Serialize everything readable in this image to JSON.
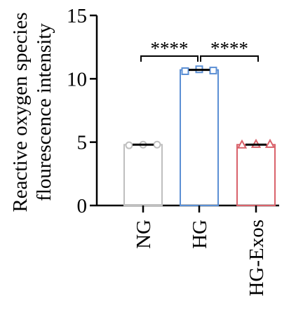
{
  "chart_data": {
    "type": "bar",
    "title": "",
    "ylabel_lines": [
      "Reactive oxygen species",
      "flourescence intensity"
    ],
    "xlabel": "",
    "ylim": [
      0,
      15
    ],
    "yticks": [
      0,
      5,
      10,
      15
    ],
    "categories": [
      "NG",
      "HG",
      "HG-Exos"
    ],
    "values": [
      4.8,
      10.7,
      4.8
    ],
    "points": [
      [
        4.75,
        4.8,
        4.8
      ],
      [
        10.6,
        10.75,
        10.65
      ],
      [
        4.8,
        4.85,
        4.85
      ]
    ],
    "markers": [
      "circle",
      "square",
      "triangle"
    ],
    "colors": [
      "#bfbfbf",
      "#5b8fd4",
      "#d9626b"
    ],
    "comparisons": [
      {
        "from": "NG",
        "to": "HG",
        "label": "****"
      },
      {
        "from": "HG",
        "to": "HG-Exos",
        "label": "****"
      }
    ],
    "grid": false,
    "legend": "none"
  }
}
